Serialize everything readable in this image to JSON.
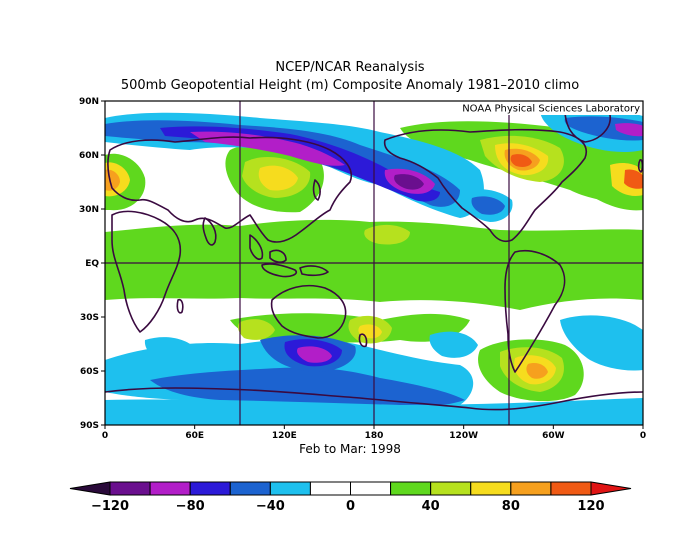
{
  "header": {
    "title": "NCEP/NCAR Reanalysis",
    "subtitle": "500mb Geopotential Height (m) Composite Anomaly 1981–2010 climo"
  },
  "credit": "NOAA Physical Sciences Laboratory",
  "period": "Feb to Mar: 1998",
  "lat_labels": [
    "90N",
    "60N",
    "30N",
    "EQ",
    "30S",
    "60S",
    "90S"
  ],
  "lon_labels": [
    "0",
    "60E",
    "120E",
    "180",
    "120W",
    "60W",
    "0"
  ],
  "colorbar": {
    "labels": [
      "−120",
      "−80",
      "−40",
      "0",
      "40",
      "80",
      "120"
    ],
    "colors": [
      "#6a0f8e",
      "#b21ec8",
      "#2c1ad8",
      "#1c63d0",
      "#1ec0ee",
      "#ffffff",
      "#ffffff",
      "#5fd81e",
      "#b6e11e",
      "#f6dc1e",
      "#f6a01e",
      "#f05a14"
    ],
    "under_color": "#2a0a3a",
    "over_color": "#e01414"
  },
  "map": {
    "background": "#ffffff",
    "colors": {
      "pos20": "#5fd81e",
      "pos40": "#b6e11e",
      "pos60": "#f6dc1e",
      "pos80": "#f6a01e",
      "pos100": "#f05a14",
      "neg20": "#1ec0ee",
      "neg40": "#1c63d0",
      "neg60": "#2c1ad8",
      "neg80": "#b21ec8",
      "neg100": "#6a0f8e",
      "coast": "#3a0a40"
    }
  }
}
